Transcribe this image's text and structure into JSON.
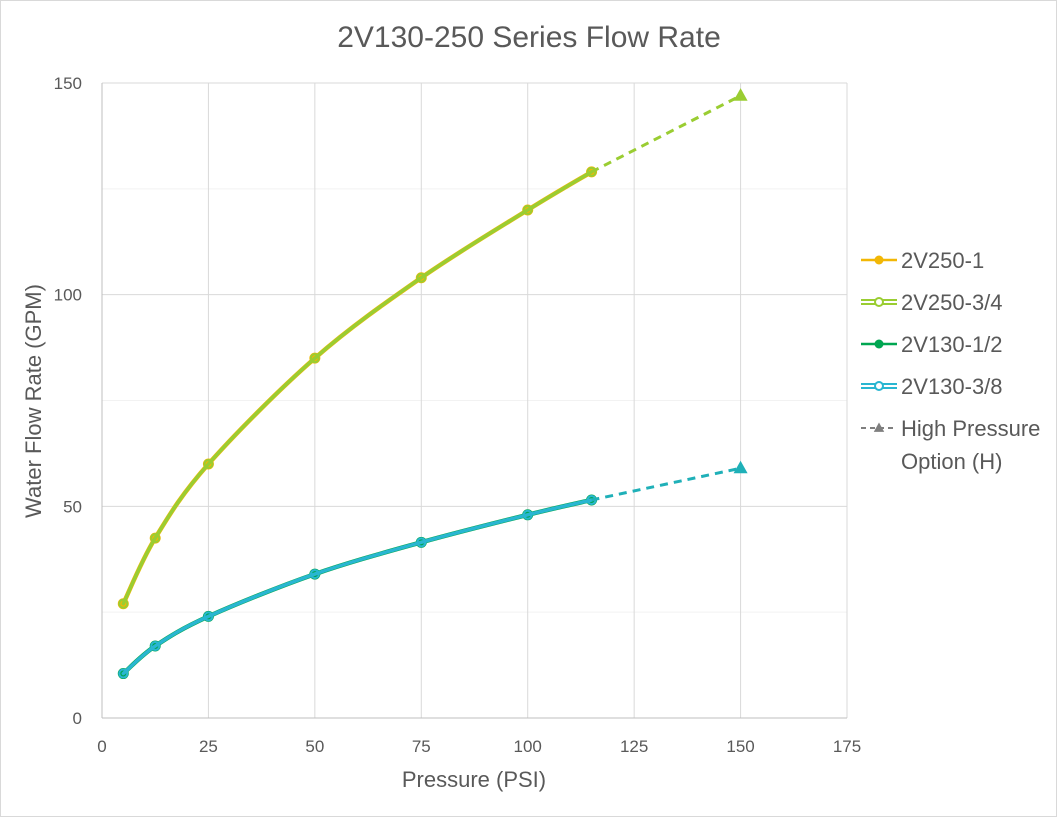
{
  "chart_data": {
    "type": "line",
    "title": "2V130-250 Series Flow Rate",
    "xlabel": "Pressure (PSI)",
    "ylabel": "Water Flow Rate (GPM)",
    "xlim": [
      0,
      175
    ],
    "ylim": [
      0,
      150
    ],
    "x_ticks": [
      0,
      25,
      50,
      75,
      100,
      125,
      150,
      175
    ],
    "y_ticks": [
      0,
      50,
      100,
      150
    ],
    "x_tick_labels": [
      "0",
      "25",
      "50",
      "75",
      "100",
      "125",
      "150",
      "175"
    ],
    "y_tick_labels": [
      "0",
      "50",
      "100",
      "150"
    ],
    "grid": true,
    "legend_position": "right",
    "series": [
      {
        "name": "2V250-1",
        "color": "#f2b705",
        "marker": "filled-circle",
        "x": [
          5,
          12.5,
          25,
          50,
          75,
          100,
          115
        ],
        "y": [
          27,
          42.5,
          60,
          85,
          104,
          120,
          129
        ]
      },
      {
        "name": "2V250-3/4",
        "color": "#9acd32",
        "marker": "hollow-circle",
        "x": [
          5,
          12.5,
          25,
          50,
          75,
          100,
          115
        ],
        "y": [
          27,
          42.5,
          60,
          85,
          104,
          120,
          129
        ]
      },
      {
        "name": "2V130-1/2",
        "color": "#00a651",
        "marker": "filled-circle",
        "x": [
          5,
          12.5,
          25,
          50,
          75,
          100,
          115
        ],
        "y": [
          10.5,
          17,
          24,
          34,
          41.5,
          48,
          51.5
        ]
      },
      {
        "name": "2V130-3/8",
        "color": "#29b6d1",
        "marker": "hollow-circle",
        "x": [
          5,
          12.5,
          25,
          50,
          75,
          100,
          115
        ],
        "y": [
          10.5,
          17,
          24,
          34,
          41.5,
          48,
          51.5
        ]
      },
      {
        "name": "High Pressure Option (H)",
        "color": "#7f7f7f",
        "marker": "triangle",
        "dashed": true,
        "segments": [
          {
            "color": "#9acd32",
            "x": [
              115,
              150
            ],
            "y": [
              129,
              147
            ]
          },
          {
            "color": "#1fb0b8",
            "x": [
              115,
              150
            ],
            "y": [
              51.5,
              59
            ]
          }
        ]
      }
    ],
    "legend": {
      "items": [
        {
          "label_lines": [
            "2V250-1"
          ]
        },
        {
          "label_lines": [
            "2V250-3/4"
          ]
        },
        {
          "label_lines": [
            "2V130-1/2"
          ]
        },
        {
          "label_lines": [
            "2V130-3/8"
          ]
        },
        {
          "label_lines": [
            "High Pressure",
            "Option (H)"
          ]
        }
      ]
    }
  }
}
